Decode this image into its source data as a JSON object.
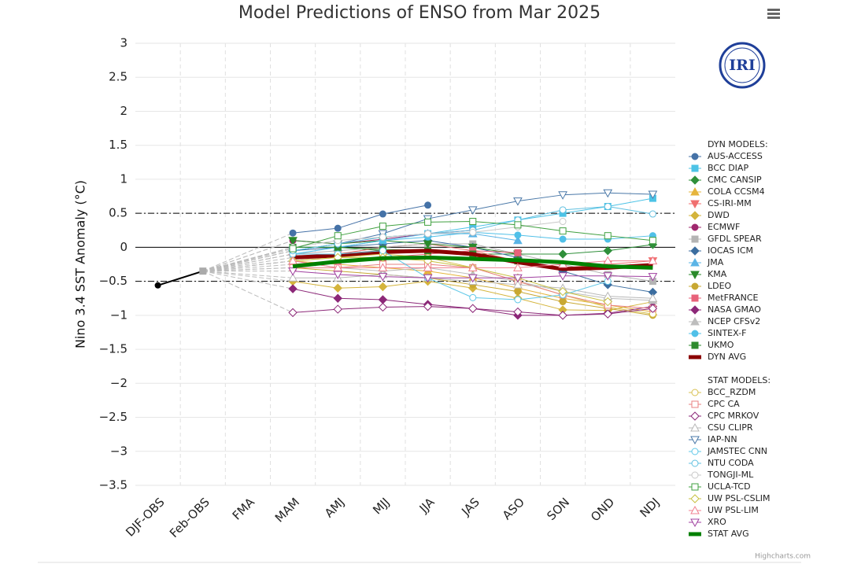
{
  "logo": "IRI",
  "chart_data": {
    "type": "line",
    "title": "Model Predictions of ENSO from Mar 2025",
    "y_label": "Nino 3.4 SST Anomaly (°C)",
    "credit": "Highcharts.com",
    "categories": [
      "DJF-OBS",
      "Feb-OBS",
      "FMA",
      "MAM",
      "AMJ",
      "MJJ",
      "JJA",
      "JAS",
      "ASO",
      "SON",
      "OND",
      "NDJ"
    ],
    "ylim": [
      -3.5,
      3
    ],
    "yticks": [
      3,
      2.5,
      2,
      1.5,
      1,
      0.5,
      0,
      {
        "value": -0.5,
        "label": "−0.5"
      },
      {
        "value": -1,
        "label": "−1"
      },
      {
        "value": -1.5,
        "label": "−1.5"
      },
      {
        "value": -2,
        "label": "−2"
      },
      {
        "value": -2.5,
        "label": "−2.5"
      },
      {
        "value": -3,
        "label": "−3"
      },
      {
        "value": -3.5,
        "label": "−3.5"
      }
    ],
    "grid": true,
    "plot_lines": [
      {
        "value": 0.5,
        "style": "dashdot"
      },
      {
        "value": 0,
        "style": "solid"
      },
      {
        "value": -0.5,
        "style": "dashdot"
      }
    ],
    "observed": {
      "color": "#000000",
      "marker_obs_last": "square",
      "values": [
        -0.56,
        -0.35,
        null,
        null,
        null,
        null,
        null,
        null,
        null,
        null,
        null,
        null
      ]
    },
    "legend_position": "right",
    "series_groups": [
      {
        "title": "DYN MODELS:",
        "series": [
          {
            "name": "AUS-ACCESS",
            "color": "#4572a7",
            "marker": "circle",
            "filled": true,
            "values": [
              null,
              null,
              null,
              0.21,
              0.28,
              0.49,
              0.62,
              null,
              null,
              null,
              null,
              null
            ]
          },
          {
            "name": "BCC DIAP",
            "color": "#4dc3e6",
            "marker": "square",
            "filled": true,
            "values": [
              null,
              null,
              null,
              -0.05,
              0.05,
              0.15,
              0.2,
              0.3,
              0.4,
              0.5,
              0.6,
              0.72
            ]
          },
          {
            "name": "CMC CANSIP",
            "color": "#2f8f3a",
            "marker": "diamond",
            "filled": true,
            "values": [
              null,
              null,
              null,
              0.0,
              0.0,
              -0.05,
              -0.05,
              -0.1,
              -0.1,
              -0.1,
              -0.05,
              0.04
            ]
          },
          {
            "name": "COLA CCSM4",
            "color": "#e6b43c",
            "marker": "triangle",
            "filled": true,
            "values": [
              null,
              null,
              null,
              -0.2,
              -0.25,
              -0.3,
              -0.35,
              -0.45,
              -0.6,
              -0.75,
              -0.85,
              -0.95
            ]
          },
          {
            "name": "CS-IRI-MM",
            "color": "#f07070",
            "marker": "triangle-down",
            "filled": true,
            "values": [
              null,
              null,
              null,
              -0.15,
              -0.1,
              0.0,
              0.05,
              -0.05,
              -0.2,
              -0.3,
              -0.25,
              -0.2
            ]
          },
          {
            "name": "DWD",
            "color": "#d4b43c",
            "marker": "diamond",
            "filled": true,
            "values": [
              null,
              null,
              null,
              -0.5,
              -0.6,
              -0.58,
              -0.5,
              -0.6,
              -0.75,
              -0.92,
              -0.93,
              -0.8
            ]
          },
          {
            "name": "ECMWF",
            "color": "#a0286e",
            "marker": "circle",
            "filled": true,
            "values": [
              null,
              null,
              null,
              0.1,
              0.05,
              0.12,
              0.2,
              0.25,
              null,
              null,
              null,
              null
            ]
          },
          {
            "name": "GFDL SPEAR",
            "color": "#b4b4b4",
            "marker": "square",
            "filled": true,
            "values": [
              null,
              null,
              null,
              -0.1,
              -0.05,
              0.0,
              0.05,
              0.05,
              -0.1,
              -0.25,
              -0.4,
              -0.5
            ]
          },
          {
            "name": "IOCAS ICM",
            "color": "#3c6ea0",
            "marker": "diamond",
            "filled": true,
            "values": [
              null,
              null,
              null,
              -0.05,
              0.0,
              0.05,
              0.1,
              0.0,
              -0.15,
              -0.35,
              -0.55,
              -0.66
            ]
          },
          {
            "name": "JMA",
            "color": "#5ab4e6",
            "marker": "triangle",
            "filled": true,
            "values": [
              null,
              null,
              null,
              0.0,
              0.0,
              0.1,
              0.2,
              0.2,
              0.1,
              null,
              null,
              null
            ]
          },
          {
            "name": "KMA",
            "color": "#2a8a2a",
            "marker": "triangle-down",
            "filled": true,
            "values": [
              null,
              null,
              null,
              0.1,
              0.05,
              0.1,
              0.05,
              0.0,
              -0.1,
              null,
              null,
              null
            ]
          },
          {
            "name": "LDEO",
            "color": "#c8a832",
            "marker": "circle",
            "filled": true,
            "values": [
              null,
              null,
              null,
              -0.3,
              -0.35,
              -0.4,
              -0.45,
              -0.55,
              -0.65,
              -0.8,
              -0.9,
              -1.0
            ]
          },
          {
            "name": "MetFRANCE",
            "color": "#e8627a",
            "marker": "square",
            "filled": true,
            "values": [
              null,
              null,
              null,
              -0.25,
              -0.2,
              -0.15,
              -0.1,
              -0.05,
              -0.08,
              null,
              null,
              null
            ]
          },
          {
            "name": "NASA GMAO",
            "color": "#8c2878",
            "marker": "diamond",
            "filled": true,
            "values": [
              null,
              null,
              null,
              -0.61,
              -0.75,
              -0.77,
              -0.84,
              -0.9,
              -1.0,
              -1.0,
              -0.97,
              -0.87
            ]
          },
          {
            "name": "NCEP CFSv2",
            "color": "#bdbdbd",
            "marker": "triangle",
            "filled": true,
            "values": [
              null,
              null,
              null,
              -0.2,
              -0.3,
              -0.35,
              -0.3,
              -0.4,
              -0.5,
              -0.65,
              -0.75,
              -0.78
            ]
          },
          {
            "name": "SINTEX-F",
            "color": "#50c0e8",
            "marker": "circle",
            "filled": true,
            "values": [
              null,
              null,
              null,
              -0.1,
              0.0,
              0.1,
              0.15,
              0.22,
              0.18,
              0.12,
              0.12,
              0.17
            ]
          },
          {
            "name": "UKMO",
            "color": "#2e8b2e",
            "marker": "square",
            "filled": true,
            "values": [
              null,
              null,
              null,
              0.0,
              0.0,
              -0.03,
              -0.05,
              -0.1,
              -0.2,
              null,
              null,
              null
            ]
          },
          {
            "name": "DYN AVG",
            "color": "#8b0000",
            "marker": "none",
            "line_width": 5,
            "values": [
              null,
              null,
              null,
              -0.15,
              -0.12,
              -0.07,
              -0.05,
              -0.1,
              -0.22,
              -0.32,
              -0.3,
              -0.26
            ]
          }
        ]
      },
      {
        "title": "STAT MODELS:",
        "series": [
          {
            "name": "BCC_RZDM",
            "color": "#d8c050",
            "marker": "circle",
            "filled": false,
            "values": [
              null,
              null,
              null,
              -0.2,
              -0.15,
              -0.1,
              -0.15,
              -0.3,
              -0.5,
              -0.7,
              -0.88,
              -0.98
            ]
          },
          {
            "name": "CPC CA",
            "color": "#e88080",
            "marker": "square",
            "filled": false,
            "values": [
              null,
              null,
              null,
              -0.3,
              -0.3,
              -0.25,
              -0.25,
              -0.3,
              -0.5,
              -0.7,
              -0.85,
              -0.9
            ]
          },
          {
            "name": "CPC MRKOV",
            "color": "#8c2878",
            "marker": "diamond",
            "filled": false,
            "values": [
              null,
              null,
              null,
              -0.96,
              -0.91,
              -0.88,
              -0.87,
              -0.9,
              -0.95,
              -1.0,
              -0.98,
              -0.9
            ]
          },
          {
            "name": "CSU CLIPR",
            "color": "#b8b8b8",
            "marker": "triangle",
            "filled": false,
            "values": [
              null,
              null,
              null,
              -0.45,
              -0.45,
              -0.4,
              -0.45,
              -0.5,
              -0.55,
              -0.6,
              -0.72,
              -0.75
            ]
          },
          {
            "name": "IAP-NN",
            "color": "#4a78a8",
            "marker": "triangle-down",
            "filled": false,
            "values": [
              null,
              null,
              null,
              -0.05,
              0.05,
              0.2,
              0.42,
              0.55,
              0.68,
              0.77,
              0.8,
              0.78
            ]
          },
          {
            "name": "JAMSTEC CNN",
            "color": "#60c8e8",
            "marker": "circle",
            "filled": false,
            "values": [
              null,
              null,
              null,
              -0.1,
              -0.1,
              -0.05,
              -0.45,
              -0.74,
              -0.77,
              -0.7,
              -0.5,
              null
            ]
          },
          {
            "name": "NTU CODA",
            "color": "#60c0e0",
            "marker": "circle",
            "filled": false,
            "values": [
              null,
              null,
              null,
              -0.05,
              0.05,
              0.15,
              0.2,
              0.25,
              0.4,
              0.55,
              0.6,
              0.49
            ]
          },
          {
            "name": "TONGJI-ML",
            "color": "#c8c8c8",
            "marker": "circle",
            "filled": false,
            "values": [
              null,
              null,
              null,
              0.0,
              0.1,
              0.15,
              0.2,
              0.22,
              0.3,
              0.38,
              null,
              null
            ]
          },
          {
            "name": "UCLA-TCD",
            "color": "#40a040",
            "marker": "square",
            "filled": false,
            "values": [
              null,
              null,
              null,
              -0.02,
              0.17,
              0.31,
              0.37,
              0.38,
              0.33,
              0.24,
              0.17,
              0.1
            ]
          },
          {
            "name": "UW PSL-CSLIM",
            "color": "#c8c040",
            "marker": "diamond",
            "filled": false,
            "values": [
              null,
              null,
              null,
              -0.2,
              -0.15,
              -0.15,
              -0.2,
              -0.3,
              -0.45,
              -0.65,
              -0.8,
              null
            ]
          },
          {
            "name": "UW PSL-LIM",
            "color": "#f08090",
            "marker": "triangle",
            "filled": false,
            "values": [
              null,
              null,
              null,
              -0.2,
              -0.3,
              -0.3,
              -0.3,
              -0.3,
              -0.3,
              -0.25,
              -0.2,
              -0.2
            ]
          },
          {
            "name": "XRO",
            "color": "#a040a0",
            "marker": "triangle-down",
            "filled": false,
            "values": [
              null,
              null,
              null,
              -0.35,
              -0.4,
              -0.43,
              -0.45,
              -0.45,
              -0.45,
              -0.42,
              -0.42,
              -0.43
            ]
          },
          {
            "name": "STAT AVG",
            "color": "#008000",
            "marker": "none",
            "line_width": 5,
            "values": [
              null,
              null,
              null,
              -0.28,
              -0.21,
              -0.16,
              -0.15,
              -0.17,
              -0.19,
              -0.22,
              -0.28,
              -0.3
            ]
          }
        ]
      }
    ]
  }
}
